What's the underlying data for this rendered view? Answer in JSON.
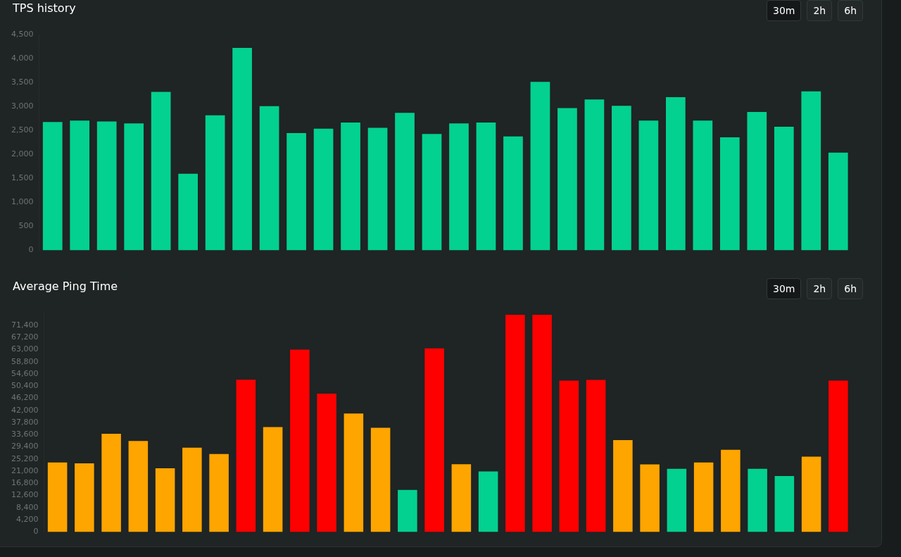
{
  "chart_data": [
    {
      "type": "bar",
      "title": "TPS history",
      "annotations": [
        "30m",
        "2h",
        "6h"
      ],
      "categories": [
        null,
        null,
        null,
        null,
        null,
        null,
        null,
        null,
        null,
        null,
        null,
        null,
        null,
        null,
        null,
        null,
        null,
        null,
        null,
        null,
        null,
        null,
        null,
        null,
        null,
        null,
        null,
        null,
        null,
        null
      ],
      "values": [
        2680,
        2710,
        2690,
        2650,
        3310,
        1600,
        2820,
        4230,
        3010,
        2450,
        2540,
        2670,
        2560,
        2870,
        2430,
        2650,
        2670,
        2380,
        3520,
        2970,
        3150,
        3020,
        2710,
        3200,
        2710,
        2360,
        2890,
        2580,
        3320,
        2040
      ],
      "color": "#03d18f",
      "ylim": [
        0,
        4500
      ],
      "yticks": [
        {
          "value": 0,
          "label": "0"
        },
        {
          "value": 500,
          "label": "500"
        },
        {
          "value": 1000,
          "label": "1,000"
        },
        {
          "value": 1500,
          "label": "1,500"
        },
        {
          "value": 2000,
          "label": "2,000"
        },
        {
          "value": 2500,
          "label": "2,500"
        },
        {
          "value": 3000,
          "label": "3,000"
        },
        {
          "value": 3500,
          "label": "3,500"
        },
        {
          "value": 4000,
          "label": "4,000"
        },
        {
          "value": 4500,
          "label": "4,500"
        }
      ],
      "grid": false,
      "tick_labels": "y"
    },
    {
      "type": "bar",
      "title": "Average Ping Time",
      "annotations": [
        "30m",
        "2h",
        "6h"
      ],
      "categories": [
        null,
        null,
        null,
        null,
        null,
        null,
        null,
        null,
        null,
        null,
        null,
        null,
        null,
        null,
        null,
        null,
        null,
        null,
        null,
        null,
        null,
        null,
        null,
        null,
        null,
        null,
        null,
        null,
        null,
        null
      ],
      "values": [
        24000,
        23700,
        33900,
        31400,
        22000,
        29100,
        26900,
        52600,
        36200,
        63000,
        47800,
        40900,
        36000,
        14500,
        63400,
        23400,
        20900,
        75000,
        75000,
        52300,
        52500,
        31700,
        23300,
        21800,
        24000,
        28400,
        21800,
        19300,
        26000,
        52300
      ],
      "colors": [
        "#ffa500",
        "#ffa500",
        "#ffa500",
        "#ffa500",
        "#ffa500",
        "#ffa500",
        "#ffa500",
        "#ff0000",
        "#ffa500",
        "#ff0000",
        "#ff0000",
        "#ffa500",
        "#ffa500",
        "#03d18f",
        "#ff0000",
        "#ffa500",
        "#03d18f",
        "#ff0000",
        "#ff0000",
        "#ff0000",
        "#ff0000",
        "#ffa500",
        "#ffa500",
        "#03d18f",
        "#ffa500",
        "#ffa500",
        "#03d18f",
        "#03d18f",
        "#ffa500",
        "#ff0000"
      ],
      "ylim": [
        0,
        75600
      ],
      "yticks": [
        {
          "value": 0,
          "label": "0"
        },
        {
          "value": 4200,
          "label": "4,200"
        },
        {
          "value": 8400,
          "label": "8,400"
        },
        {
          "value": 12600,
          "label": "12,600"
        },
        {
          "value": 16800,
          "label": "16,800"
        },
        {
          "value": 21000,
          "label": "21,000"
        },
        {
          "value": 25200,
          "label": "25,200"
        },
        {
          "value": 29400,
          "label": "29,400"
        },
        {
          "value": 33600,
          "label": "33,600"
        },
        {
          "value": 37800,
          "label": "37,800"
        },
        {
          "value": 42000,
          "label": "42,000"
        },
        {
          "value": 46200,
          "label": "46,200"
        },
        {
          "value": 50400,
          "label": "50,400"
        },
        {
          "value": 54600,
          "label": "54,600"
        },
        {
          "value": 58800,
          "label": "58,800"
        },
        {
          "value": 63000,
          "label": "63,000"
        },
        {
          "value": 67200,
          "label": "67,200"
        },
        {
          "value": 71400,
          "label": "71,400"
        }
      ],
      "grid": false,
      "tick_labels": "y"
    }
  ]
}
